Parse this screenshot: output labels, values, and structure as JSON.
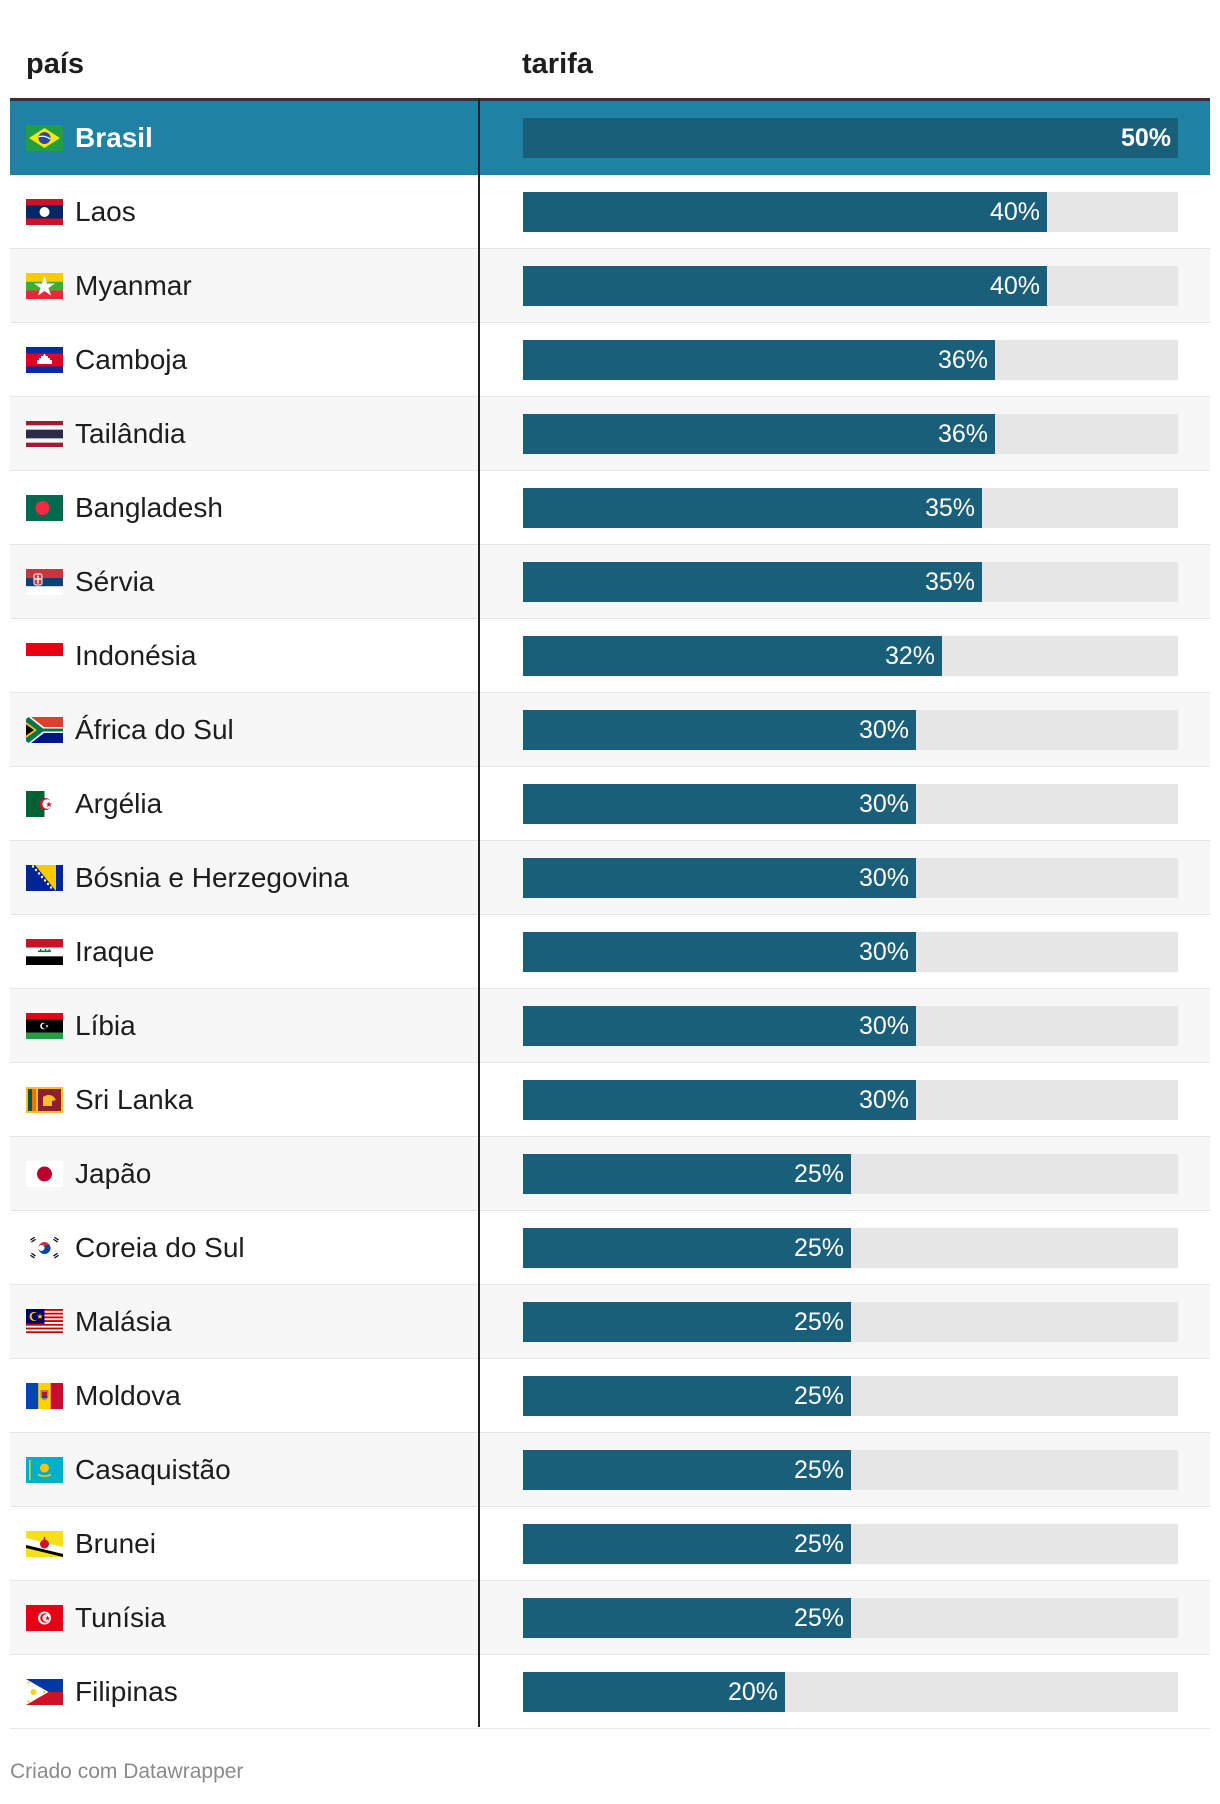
{
  "header": {
    "country_label": "país",
    "tariff_label": "tarifa"
  },
  "chart_data": {
    "type": "bar",
    "orientation": "horizontal",
    "xlim": [
      0,
      50
    ],
    "highlight": "Brasil",
    "categories": [
      "Brasil",
      "Laos",
      "Myanmar",
      "Camboja",
      "Tailândia",
      "Bangladesh",
      "Sérvia",
      "Indonésia",
      "África do Sul",
      "Argélia",
      "Bósnia e Herzegovina",
      "Iraque",
      "Líbia",
      "Sri Lanka",
      "Japão",
      "Coreia do Sul",
      "Malásia",
      "Moldova",
      "Casaquistão",
      "Brunei",
      "Tunísia",
      "Filipinas"
    ],
    "values": [
      50,
      40,
      40,
      36,
      36,
      35,
      35,
      32,
      30,
      30,
      30,
      30,
      30,
      30,
      25,
      25,
      25,
      25,
      25,
      25,
      25,
      20
    ]
  },
  "rows": [
    {
      "country": "Brasil",
      "value": 50,
      "label": "50%",
      "flag": "brazil-flag-icon"
    },
    {
      "country": "Laos",
      "value": 40,
      "label": "40%",
      "flag": "laos-flag-icon"
    },
    {
      "country": "Myanmar",
      "value": 40,
      "label": "40%",
      "flag": "myanmar-flag-icon"
    },
    {
      "country": "Camboja",
      "value": 36,
      "label": "36%",
      "flag": "cambodia-flag-icon"
    },
    {
      "country": "Tailândia",
      "value": 36,
      "label": "36%",
      "flag": "thailand-flag-icon"
    },
    {
      "country": "Bangladesh",
      "value": 35,
      "label": "35%",
      "flag": "bangladesh-flag-icon"
    },
    {
      "country": "Sérvia",
      "value": 35,
      "label": "35%",
      "flag": "serbia-flag-icon"
    },
    {
      "country": "Indonésia",
      "value": 32,
      "label": "32%",
      "flag": "indonesia-flag-icon"
    },
    {
      "country": "África do Sul",
      "value": 30,
      "label": "30%",
      "flag": "south-africa-flag-icon"
    },
    {
      "country": "Argélia",
      "value": 30,
      "label": "30%",
      "flag": "algeria-flag-icon"
    },
    {
      "country": "Bósnia e Herzegovina",
      "value": 30,
      "label": "30%",
      "flag": "bosnia-flag-icon"
    },
    {
      "country": "Iraque",
      "value": 30,
      "label": "30%",
      "flag": "iraq-flag-icon"
    },
    {
      "country": "Líbia",
      "value": 30,
      "label": "30%",
      "flag": "libya-flag-icon"
    },
    {
      "country": "Sri Lanka",
      "value": 30,
      "label": "30%",
      "flag": "sri-lanka-flag-icon"
    },
    {
      "country": "Japão",
      "value": 25,
      "label": "25%",
      "flag": "japan-flag-icon"
    },
    {
      "country": "Coreia do Sul",
      "value": 25,
      "label": "25%",
      "flag": "south-korea-flag-icon"
    },
    {
      "country": "Malásia",
      "value": 25,
      "label": "25%",
      "flag": "malaysia-flag-icon"
    },
    {
      "country": "Moldova",
      "value": 25,
      "label": "25%",
      "flag": "moldova-flag-icon"
    },
    {
      "country": "Casaquistão",
      "value": 25,
      "label": "25%",
      "flag": "kazakhstan-flag-icon"
    },
    {
      "country": "Brunei",
      "value": 25,
      "label": "25%",
      "flag": "brunei-flag-icon"
    },
    {
      "country": "Tunísia",
      "value": 25,
      "label": "25%",
      "flag": "tunisia-flag-icon"
    },
    {
      "country": "Filipinas",
      "value": 20,
      "label": "20%",
      "flag": "philippines-flag-icon"
    }
  ],
  "colors": {
    "bar": "#1a5f7a",
    "track": "#e6e6e6",
    "highlight_row": "#1f82a5"
  },
  "footer": {
    "credit": "Criado com Datawrapper"
  }
}
